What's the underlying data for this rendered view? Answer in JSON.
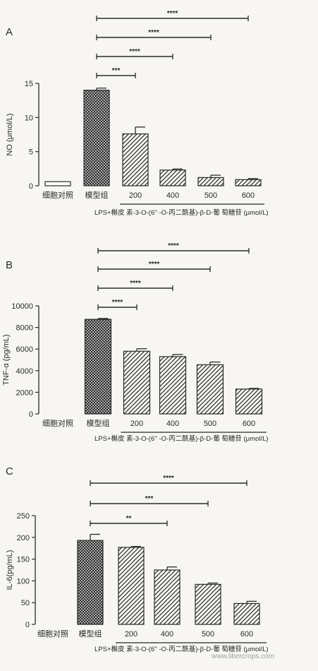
{
  "chart_data": [
    {
      "type": "bar",
      "panel_label": "A",
      "ylabel": "NO (μmol/L)",
      "ylim": [
        0,
        15
      ],
      "yticks": [
        0,
        5,
        10,
        15
      ],
      "categories": [
        "细胞对照",
        "模型组",
        "200",
        "400",
        "500",
        "600"
      ],
      "values": [
        0.6,
        14.0,
        7.6,
        2.3,
        1.2,
        0.9
      ],
      "errors": [
        0.0,
        0.3,
        1.0,
        0.15,
        0.35,
        0.15
      ],
      "fills": [
        "solid",
        "crosshatch",
        "hatch",
        "hatch",
        "hatch",
        "hatch"
      ],
      "group_label": "LPS+槲皮 素-3-O-(6'' -O-丙二酰基)-β-D-葡 萄糖苷 (μmol/L)",
      "significance": [
        {
          "from": "模型组",
          "to": "600",
          "label": "****"
        },
        {
          "from": "模型组",
          "to": "500",
          "label": "****"
        },
        {
          "from": "模型组",
          "to": "400",
          "label": "****"
        },
        {
          "from": "模型组",
          "to": "200",
          "label": "***"
        }
      ]
    },
    {
      "type": "bar",
      "panel_label": "B",
      "ylabel": "TNF-α (pg/mL)",
      "ylim": [
        0,
        10000
      ],
      "yticks": [
        0,
        2000,
        4000,
        6000,
        8000,
        10000
      ],
      "categories": [
        "细胞对照",
        "模型组",
        "200",
        "400",
        "500",
        "600"
      ],
      "values": [
        0,
        8750,
        5800,
        5300,
        4550,
        2300
      ],
      "errors": [
        0,
        80,
        230,
        200,
        250,
        60
      ],
      "fills": [
        "solid",
        "crosshatch",
        "hatch",
        "hatch",
        "hatch",
        "hatch"
      ],
      "group_label": "LPS+槲皮 素-3-O-(6'' -O-丙二酰基)-β-D-葡 萄糖苷 (μmol/L)",
      "significance": [
        {
          "from": "模型组",
          "to": "600",
          "label": "****"
        },
        {
          "from": "模型组",
          "to": "500",
          "label": "****"
        },
        {
          "from": "模型组",
          "to": "400",
          "label": "****"
        },
        {
          "from": "模型组",
          "to": "200",
          "label": "****"
        }
      ]
    },
    {
      "type": "bar",
      "panel_label": "C",
      "ylabel": "IL-6(pg/mL)",
      "ylim": [
        0,
        250
      ],
      "yticks": [
        0,
        50,
        100,
        150,
        200,
        250
      ],
      "categories": [
        "细胞对照",
        "模型组",
        "200",
        "400",
        "500",
        "600"
      ],
      "values": [
        0,
        193,
        177,
        125,
        92,
        48
      ],
      "errors": [
        0,
        14,
        2,
        7,
        3,
        5
      ],
      "fills": [
        "solid",
        "crosshatch",
        "hatch",
        "hatch",
        "hatch",
        "hatch"
      ],
      "group_label": "LPS+槲皮 素-3-O-(6'' -O-丙二酰基)-β-D-葡 萄糖苷 (μmol/L)",
      "significance": [
        {
          "from": "模型组",
          "to": "600",
          "label": "****"
        },
        {
          "from": "模型组",
          "to": "500",
          "label": "***"
        },
        {
          "from": "模型组",
          "to": "400",
          "label": "**"
        }
      ]
    }
  ],
  "watermark": "www.libercrops.com"
}
